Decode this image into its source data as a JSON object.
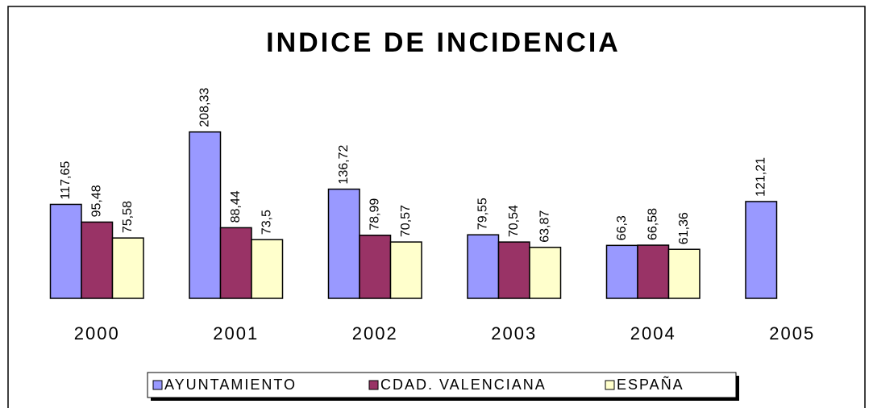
{
  "chart_data": {
    "type": "bar",
    "title": "INDICE DE INCIDENCIA",
    "categories": [
      "2000",
      "2001",
      "2002",
      "2003",
      "2004",
      "2005"
    ],
    "series": [
      {
        "name": "AYUNTAMIENTO",
        "color": "#9999ff",
        "values": [
          117.65,
          208.33,
          136.72,
          79.55,
          66.3,
          121.21
        ],
        "value_labels": [
          "117,65",
          "208,33",
          "136,72",
          "79,55",
          "66,3",
          "121,21"
        ]
      },
      {
        "name": "CDAD. VALENCIANA",
        "color": "#993366",
        "values": [
          95.48,
          88.44,
          78.99,
          70.54,
          66.58,
          null
        ],
        "value_labels": [
          "95,48",
          "88,44",
          "78,99",
          "70,54",
          "66,58",
          null
        ]
      },
      {
        "name": "ESPAÑA",
        "color": "#ffffcc",
        "values": [
          75.58,
          73.5,
          70.57,
          63.87,
          61.36,
          null
        ],
        "value_labels": [
          "75,58",
          "73,5",
          "70,57",
          "63,87",
          "61,36",
          null
        ]
      }
    ],
    "ylim": [
      0,
      210
    ],
    "legend": "bottom"
  }
}
